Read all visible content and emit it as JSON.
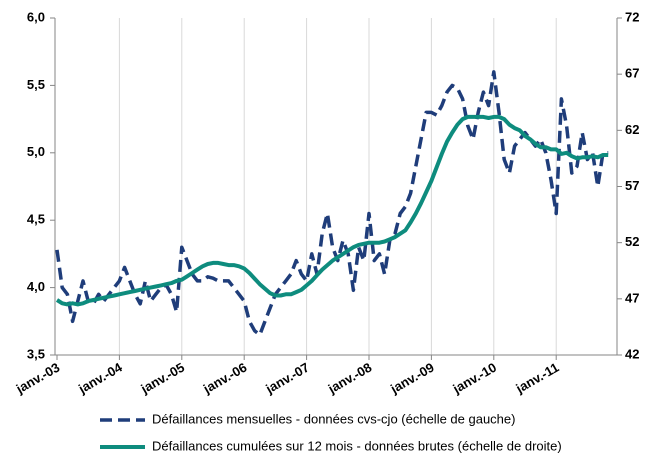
{
  "chart_data": {
    "type": "line",
    "categories": [
      "janv.-03",
      null,
      null,
      null,
      null,
      null,
      null,
      null,
      null,
      null,
      null,
      null,
      "janv.-04",
      null,
      null,
      null,
      null,
      null,
      null,
      null,
      null,
      null,
      null,
      null,
      "janv.-05",
      null,
      null,
      null,
      null,
      null,
      null,
      null,
      null,
      null,
      null,
      null,
      "janv.-06",
      null,
      null,
      null,
      null,
      null,
      null,
      null,
      null,
      null,
      null,
      null,
      "janv.-07",
      null,
      null,
      null,
      null,
      null,
      null,
      null,
      null,
      null,
      null,
      null,
      "janv.-08",
      null,
      null,
      null,
      null,
      null,
      null,
      null,
      null,
      null,
      null,
      null,
      "janv.-09",
      null,
      null,
      null,
      null,
      null,
      null,
      null,
      null,
      null,
      null,
      null,
      "janv.-10",
      null,
      null,
      null,
      null,
      null,
      null,
      null,
      null,
      null,
      null,
      null,
      "janv.-11",
      null,
      null,
      null,
      null,
      null,
      null,
      null,
      null,
      null,
      null
    ],
    "series": [
      {
        "name": "Défaillances mensuelles - données cvs-cjo (échelle de gauche)",
        "color": "#1f3d7a",
        "dash": true,
        "values": [
          4.28,
          4.0,
          3.95,
          3.75,
          3.9,
          4.05,
          3.9,
          3.88,
          3.95,
          3.9,
          3.95,
          4.0,
          4.05,
          4.15,
          4.05,
          3.95,
          3.88,
          4.05,
          3.9,
          3.95,
          4.0,
          4.02,
          3.95,
          3.82,
          4.3,
          4.2,
          4.1,
          4.05,
          4.05,
          4.08,
          4.07,
          4.05,
          4.05,
          4.05,
          4.0,
          3.95,
          3.9,
          3.75,
          3.68,
          3.65,
          3.75,
          3.85,
          3.95,
          4.0,
          4.05,
          4.1,
          4.2,
          4.1,
          4.05,
          4.25,
          4.1,
          4.4,
          4.55,
          4.3,
          4.2,
          4.35,
          4.25,
          3.98,
          4.3,
          4.2,
          4.55,
          4.2,
          4.25,
          4.1,
          4.35,
          4.4,
          4.55,
          4.6,
          4.7,
          4.9,
          5.1,
          5.3,
          5.3,
          5.28,
          5.35,
          5.45,
          5.5,
          5.48,
          5.4,
          5.2,
          5.1,
          5.3,
          5.45,
          5.35,
          5.6,
          5.3,
          4.95,
          4.85,
          5.05,
          5.1,
          5.15,
          5.1,
          5.05,
          5.1,
          5.0,
          4.8,
          4.55,
          5.4,
          5.2,
          4.85,
          4.9,
          5.15,
          4.95,
          5.0,
          4.75,
          5.0,
          5.0
        ]
      },
      {
        "name": "Défaillances cumulées sur 12 mois - données brutes (échelle de droite)",
        "color": "#0e8c7e",
        "axis": "y2",
        "values": [
          46.9,
          46.6,
          46.5,
          46.6,
          46.5,
          46.6,
          46.8,
          46.9,
          47.0,
          47.1,
          47.2,
          47.3,
          47.4,
          47.5,
          47.6,
          47.7,
          47.8,
          47.9,
          48.0,
          48.1,
          48.2,
          48.3,
          48.4,
          48.6,
          48.7,
          49.0,
          49.3,
          49.6,
          49.9,
          50.1,
          50.2,
          50.2,
          50.1,
          50.0,
          50.0,
          49.9,
          49.7,
          49.3,
          48.8,
          48.3,
          47.9,
          47.5,
          47.3,
          47.3,
          47.4,
          47.4,
          47.6,
          47.8,
          48.2,
          48.6,
          49.1,
          49.6,
          50.0,
          50.4,
          50.7,
          51.0,
          51.3,
          51.6,
          51.8,
          51.9,
          52.0,
          52.0,
          52.0,
          52.1,
          52.3,
          52.5,
          52.8,
          53.1,
          53.8,
          54.6,
          55.5,
          56.5,
          57.5,
          58.7,
          59.9,
          61.0,
          61.8,
          62.5,
          63.0,
          63.2,
          63.2,
          63.2,
          63.2,
          63.1,
          63.2,
          63.2,
          63.0,
          62.5,
          62.2,
          62.0,
          61.5,
          61.2,
          60.8,
          60.5,
          60.5,
          60.3,
          60.3,
          59.9,
          60.0,
          59.7,
          59.5,
          59.6,
          59.6,
          59.7,
          59.6,
          59.8,
          59.8
        ]
      }
    ],
    "ylim": [
      3.5,
      6.0
    ],
    "yticks": [
      {
        "value": 3.5,
        "label": "3,5"
      },
      {
        "value": 4.0,
        "label": "4,0"
      },
      {
        "value": 4.5,
        "label": "4,5"
      },
      {
        "value": 5.0,
        "label": "5,0"
      },
      {
        "value": 5.5,
        "label": "5,5"
      },
      {
        "value": 6.0,
        "label": "6,0"
      }
    ],
    "y2lim": [
      42,
      72
    ],
    "y2ticks": [
      42,
      47,
      52,
      57,
      62,
      67,
      72
    ],
    "grid": "x",
    "legend": "bottom"
  }
}
